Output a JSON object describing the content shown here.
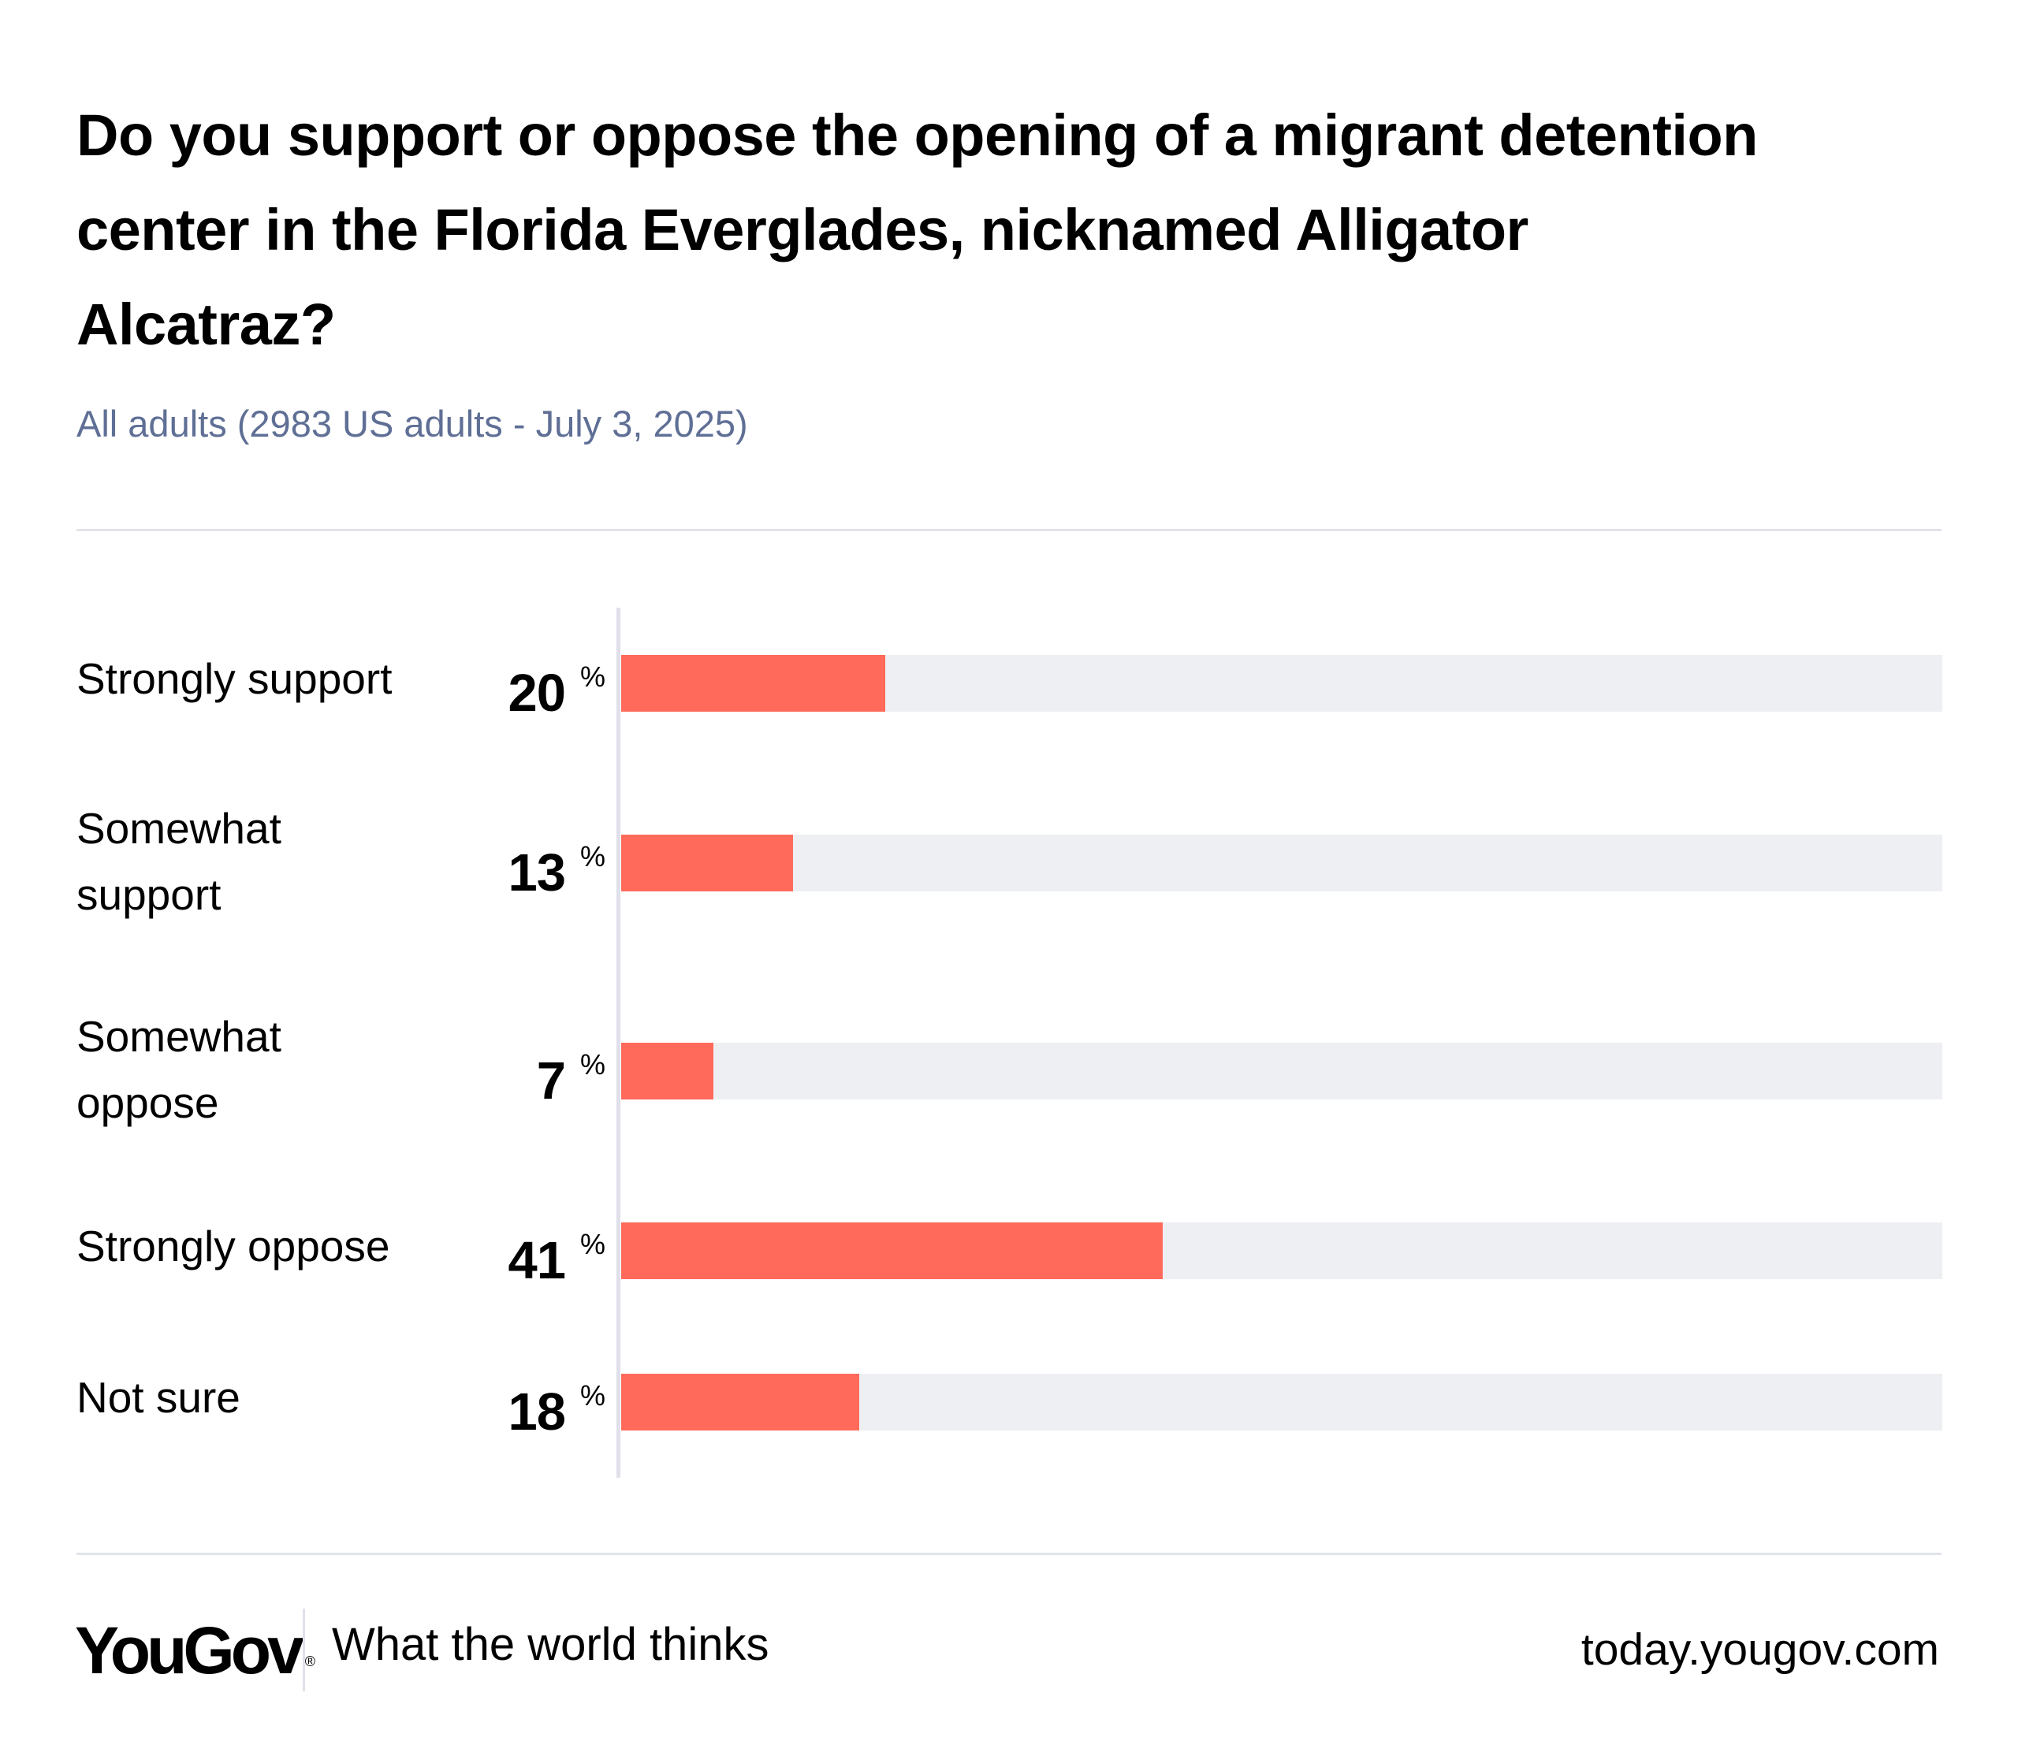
{
  "header": {
    "title_lines": [
      "Do you support or oppose the opening of a migrant detention",
      "center in the Florida Everglades, nicknamed Alligator",
      "Alcatraz?"
    ],
    "subtitle": "All adults (2983 US adults - July 3, 2025)"
  },
  "colors": {
    "bar": "#ff6a5a",
    "track": "#eeeff3",
    "subtitle": "#5f6f95",
    "axis": "#dfe0ea"
  },
  "chart_data": {
    "type": "bar",
    "orientation": "horizontal",
    "title": "Do you support or oppose the opening of a migrant detention center in the Florida Everglades, nicknamed Alligator Alcatraz?",
    "subtitle": "All adults (2983 US adults - July 3, 2025)",
    "categories": [
      "Strongly support",
      "Somewhat support",
      "Somewhat oppose",
      "Strongly oppose",
      "Not sure"
    ],
    "values": [
      20,
      13,
      7,
      41,
      18
    ],
    "unit": "%",
    "xlim": [
      0,
      100
    ],
    "xlabel": "",
    "ylabel": "",
    "grid": false,
    "legend": "none"
  },
  "rows": [
    {
      "label_lines": [
        "Strongly support"
      ],
      "value": "20",
      "unit": "%"
    },
    {
      "label_lines": [
        "Somewhat",
        "support"
      ],
      "value": "13",
      "unit": "%"
    },
    {
      "label_lines": [
        "Somewhat",
        "oppose"
      ],
      "value": "7",
      "unit": "%"
    },
    {
      "label_lines": [
        "Strongly oppose"
      ],
      "value": "41",
      "unit": "%"
    },
    {
      "label_lines": [
        "Not sure"
      ],
      "value": "18",
      "unit": "%"
    }
  ],
  "footer": {
    "logo": "YouGov",
    "logo_mark": "®",
    "tagline": "What the world thinks",
    "site": "today.yougov.com"
  }
}
